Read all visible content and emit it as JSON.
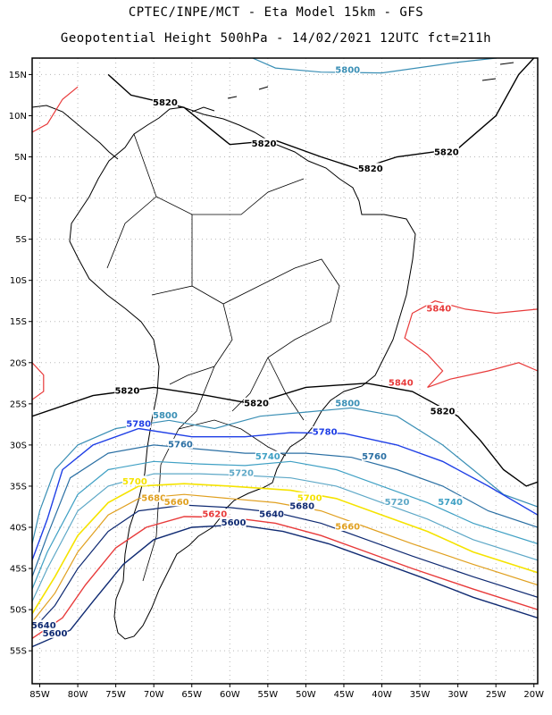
{
  "title": {
    "line1": "CPTEC/INPE/MCT -  Eta Model 15km - GFS",
    "line2": "Geopotential Height 500hPa - 14/02/2021 12UTC fct=211h"
  },
  "axes": {
    "lat_labels": [
      "15N",
      "10N",
      "5N",
      "EQ",
      "5S",
      "10S",
      "15S",
      "20S",
      "25S",
      "30S",
      "35S",
      "40S",
      "45S",
      "50S",
      "55S"
    ],
    "lon_labels": [
      "85W",
      "80W",
      "75W",
      "70W",
      "65W",
      "60W",
      "55W",
      "50W",
      "45W",
      "40W",
      "35W",
      "30W",
      "25W",
      "20W"
    ],
    "lat_range": [
      17,
      -59
    ],
    "lon_range": [
      -86,
      -19.5
    ],
    "grid": true
  },
  "contour_labels": [
    {
      "text": "5800",
      "lon": -44.5,
      "lat": 15.5,
      "color": "#3a8fb5"
    },
    {
      "text": "5820",
      "lon": -68.5,
      "lat": 11.5,
      "color": "#000000"
    },
    {
      "text": "5820",
      "lon": -55.5,
      "lat": 6.5,
      "color": "#000000"
    },
    {
      "text": "5820",
      "lon": -41.5,
      "lat": 3.5,
      "color": "#000000"
    },
    {
      "text": "5820",
      "lon": -31.5,
      "lat": 5.5,
      "color": "#000000"
    },
    {
      "text": "5840",
      "lon": -32.5,
      "lat": -13.5,
      "color": "#e83a3a"
    },
    {
      "text": "5840",
      "lon": -37.5,
      "lat": -22.5,
      "color": "#e83a3a"
    },
    {
      "text": "5820",
      "lon": -73.5,
      "lat": -23.5,
      "color": "#000000"
    },
    {
      "text": "5820",
      "lon": -56.5,
      "lat": -25.0,
      "color": "#000000"
    },
    {
      "text": "5820",
      "lon": -32.0,
      "lat": -26.0,
      "color": "#000000"
    },
    {
      "text": "5800",
      "lon": -68.5,
      "lat": -26.5,
      "color": "#3a8fb5"
    },
    {
      "text": "5800",
      "lon": -44.5,
      "lat": -25.0,
      "color": "#3a8fb5"
    },
    {
      "text": "5780",
      "lon": -72.0,
      "lat": -27.5,
      "color": "#1f3fe6"
    },
    {
      "text": "5780",
      "lon": -47.5,
      "lat": -28.5,
      "color": "#1f3fe6"
    },
    {
      "text": "5760",
      "lon": -66.5,
      "lat": -30.0,
      "color": "#2a6fa3"
    },
    {
      "text": "5760",
      "lon": -41.0,
      "lat": -31.5,
      "color": "#2a6fa3"
    },
    {
      "text": "5740",
      "lon": -55.0,
      "lat": -31.5,
      "color": "#3fa0c4"
    },
    {
      "text": "5740",
      "lon": -31.0,
      "lat": -37.0,
      "color": "#3fa0c4"
    },
    {
      "text": "5720",
      "lon": -58.5,
      "lat": -33.5,
      "color": "#5ea8c7"
    },
    {
      "text": "5720",
      "lon": -38.0,
      "lat": -37.0,
      "color": "#5ea8c7"
    },
    {
      "text": "5700",
      "lon": -72.5,
      "lat": -34.5,
      "color": "#f5e300"
    },
    {
      "text": "5700",
      "lon": -49.5,
      "lat": -36.5,
      "color": "#f5e300"
    },
    {
      "text": "5680",
      "lon": -70.0,
      "lat": -36.5,
      "color": "#e0a020"
    },
    {
      "text": "5680",
      "lon": -50.5,
      "lat": -37.5,
      "color": "#0f2a72"
    },
    {
      "text": "5660",
      "lon": -67.0,
      "lat": -37.0,
      "color": "#e0a020"
    },
    {
      "text": "5660",
      "lon": -44.5,
      "lat": -40.0,
      "color": "#e0a020"
    },
    {
      "text": "5640",
      "lon": -54.5,
      "lat": -38.5,
      "color": "#0f2a72"
    },
    {
      "text": "5620",
      "lon": -62.0,
      "lat": -38.5,
      "color": "#e83a3a"
    },
    {
      "text": "5600",
      "lon": -59.5,
      "lat": -39.5,
      "color": "#0f2a72"
    },
    {
      "text": "5640",
      "lon": -84.5,
      "lat": -52.0,
      "color": "#0f2a72"
    },
    {
      "text": "5600",
      "lon": -83.0,
      "lat": -53.0,
      "color": "#0f2a72"
    }
  ],
  "colors": {
    "frame": "#000000",
    "grid": "#b8b8b8",
    "coast": "#000000",
    "c5840": "#e83a3a",
    "c5820": "#000000",
    "c5800": "#3a8fb5",
    "c5780": "#1f3fe6",
    "c5760": "#2a6fa3",
    "c5740": "#3fa0c4",
    "c5720": "#5ea8c7",
    "c5700": "#f5e300",
    "c5680": "#e0a020",
    "c5660": "#0f2a72",
    "c5620": "#e83a3a",
    "c5600": "#0f2a72"
  }
}
